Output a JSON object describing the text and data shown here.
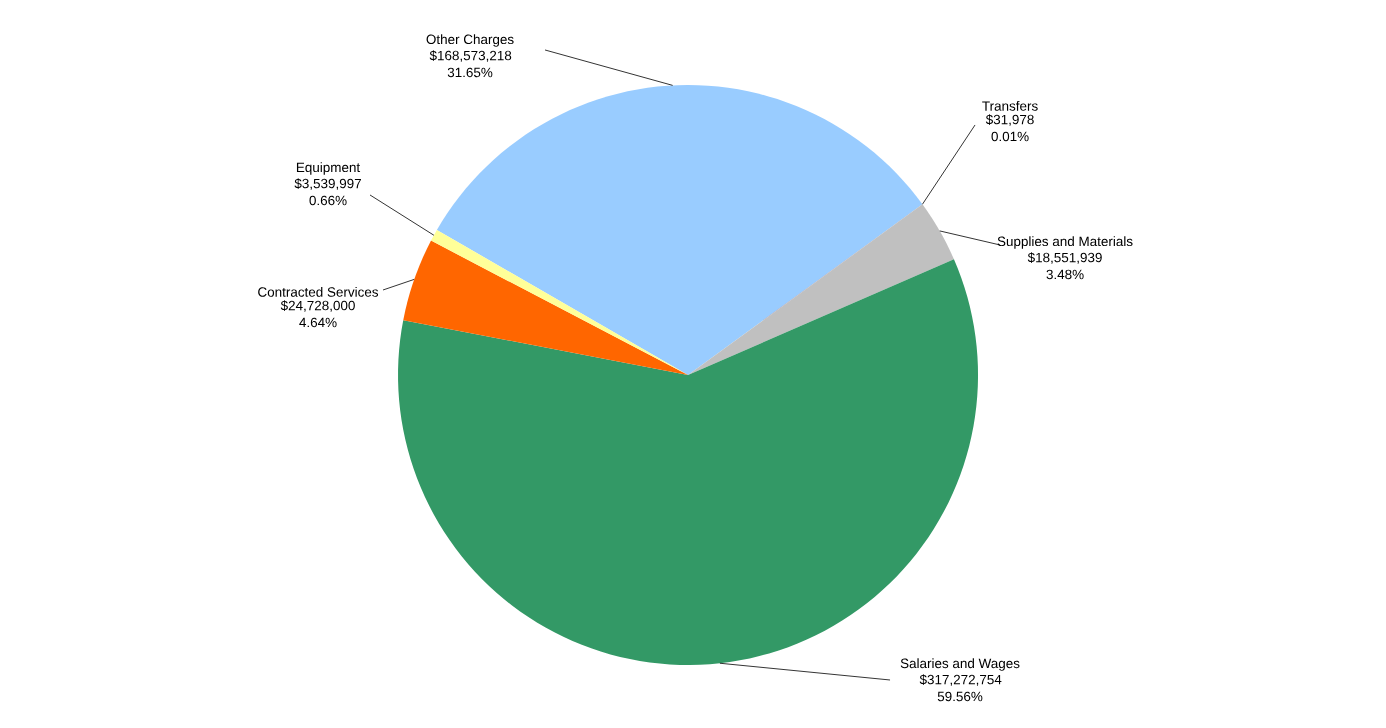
{
  "chart_data": {
    "type": "pie",
    "categories": [
      "Other Charges",
      "Transfers",
      "Supplies and Materials",
      "Salaries and Wages",
      "Contracted Services",
      "Equipment"
    ],
    "values": [
      168573218,
      31978,
      18551939,
      317272754,
      24728000,
      3539997
    ],
    "colors": [
      "#99ccff",
      "#7f3f5f",
      "#c0c0c0",
      "#339966",
      "#ff6600",
      "#ffff99"
    ],
    "value_labels": [
      "$168,573,218 31.65%",
      "$31,978 0.01%",
      "$18,551,939 3.48%",
      "$317,272,754 59.56%",
      "$24,728,000 4.64%",
      "$3,539,997 0.66%"
    ]
  }
}
